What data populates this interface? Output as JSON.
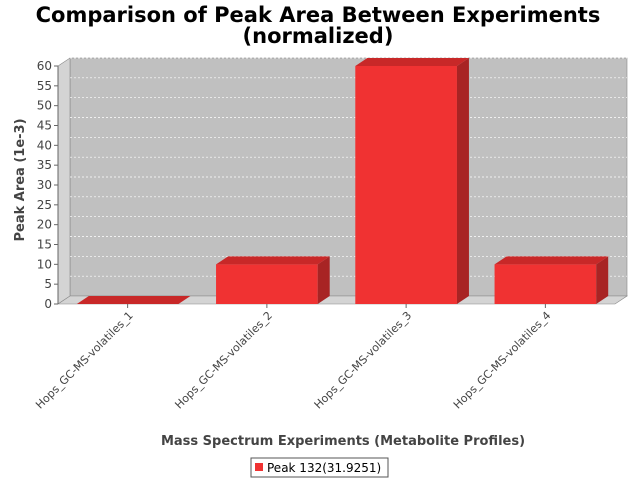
{
  "chart_data": {
    "type": "bar",
    "title_line1": "Comparison of Peak Area Between Experiments",
    "title_line2": "(normalized)",
    "xlabel": "Mass Spectrum Experiments (Metabolite Profiles)",
    "ylabel": "Peak Area (1e-3)",
    "categories": [
      "Hops_GC-MS-volatiles_1",
      "Hops_GC-MS-volatiles_2",
      "Hops_GC-MS-volatiles_3",
      "Hops_GC-MS-volatiles_4"
    ],
    "series": [
      {
        "name": "Peak 132(31.9251)",
        "values": [
          0,
          10,
          60,
          10
        ]
      }
    ],
    "ylim": [
      0,
      60
    ],
    "yticks": [
      "0",
      "5",
      "10",
      "15",
      "20",
      "25",
      "30",
      "35",
      "40",
      "45",
      "50",
      "55",
      "60"
    ],
    "grid": true,
    "legend": "bottom",
    "colors": {
      "bar": "#f03232",
      "bar_top": "#c82828",
      "bar_side": "#a82424",
      "plot_bg": "#c0c0c0",
      "wall": "#d4d4d4"
    }
  }
}
